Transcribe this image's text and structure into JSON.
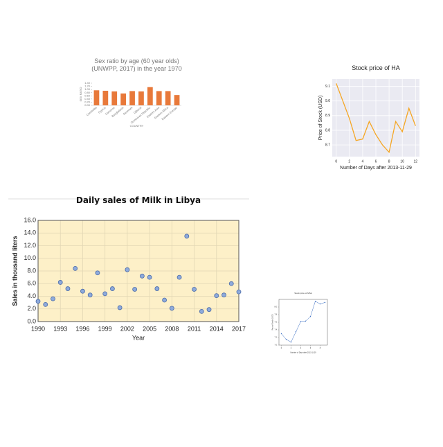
{
  "chart_data": [
    {
      "type": "bar",
      "title": "Sex ratio by age (60 year olds) (UNWPP, 2017) in the year 1970",
      "categories": [
        "Cambodia",
        "Cyprus",
        "Comoros",
        "Bangladesh",
        "Denmark",
        "Djibouti",
        "Dominican Republic",
        "Eastern Asia",
        "Eastern Africa",
        "Eastern Europe"
      ],
      "values": [
        0.95,
        0.92,
        0.88,
        0.75,
        0.9,
        0.88,
        1.15,
        0.9,
        0.9,
        0.65
      ],
      "color": "#e8793a",
      "xlabel": "COUNTRY",
      "ylabel": "SEX RATIO",
      "ylim": [
        0,
        1.4
      ],
      "yticks": [
        {
          "value": 0,
          "label": "0.00"
        },
        {
          "value": 0.2,
          "label": "0.20"
        },
        {
          "value": 0.4,
          "label": "0.40"
        },
        {
          "value": 0.6,
          "label": "0.60"
        },
        {
          "value": 0.8,
          "label": "0.80"
        },
        {
          "value": 1,
          "label": "1.00"
        },
        {
          "value": 1.2,
          "label": "1.20"
        },
        {
          "value": 1.4,
          "label": "1.40"
        }
      ],
      "grid": false
    },
    {
      "type": "line",
      "title": "Stock price of HA",
      "x": [
        0,
        1,
        2,
        3,
        4,
        5,
        6,
        7,
        8,
        9,
        10,
        11,
        12
      ],
      "values": [
        9.12,
        9.0,
        8.88,
        8.73,
        8.74,
        8.86,
        8.77,
        8.7,
        8.65,
        8.86,
        8.79,
        8.95,
        8.83
      ],
      "color": "#f5a623",
      "xlabel": "Number of Days after 2013-11-29",
      "ylabel": "Price of Stock (USD)",
      "xlim": [
        -0.6,
        12.6
      ],
      "xticks": [
        0,
        2,
        4,
        6,
        8,
        10,
        12
      ],
      "ylim": [
        8.62,
        9.15
      ],
      "yticks": [
        8.7,
        8.8,
        8.9,
        {
          "value": 9,
          "label": "9.0"
        },
        9.1
      ],
      "grid": true
    },
    {
      "type": "scatter",
      "title": "Daily sales of Milk in Libya",
      "x": [
        1990,
        1991,
        1992,
        1993,
        1994,
        1995,
        1996,
        1997,
        1998,
        1999,
        2000,
        2001,
        2002,
        2003,
        2004,
        2005,
        2006,
        2007,
        2008,
        2009,
        2010,
        2011,
        2012,
        2013,
        2014,
        2015,
        2016,
        2017
      ],
      "values": [
        3.2,
        2.7,
        3.6,
        6.2,
        5.2,
        8.4,
        4.8,
        4.2,
        7.7,
        4.4,
        5.2,
        2.2,
        8.2,
        5.1,
        7.2,
        7.0,
        5.2,
        3.4,
        2.1,
        7.0,
        13.5,
        5.1,
        1.6,
        1.9,
        4.1,
        4.2,
        6.0,
        4.7
      ],
      "color": "#8eaadb",
      "xlabel": "Year",
      "ylabel": "Sales in thousand liters",
      "xlim": [
        1990,
        2017
      ],
      "xticks": [
        1990,
        1993,
        1996,
        1999,
        2002,
        2005,
        2008,
        2011,
        2014,
        2017
      ],
      "ylim": [
        0,
        16
      ],
      "yticks": [
        {
          "value": 0,
          "label": "0.0"
        },
        {
          "value": 2,
          "label": "2.0"
        },
        {
          "value": 4,
          "label": "4.0"
        },
        {
          "value": 6,
          "label": "6.0"
        },
        {
          "value": 8,
          "label": "8.0"
        },
        {
          "value": 10,
          "label": "10.0"
        },
        {
          "value": 12,
          "label": "12.0"
        },
        {
          "value": 14,
          "label": "14.0"
        },
        {
          "value": 16,
          "label": "16.0"
        }
      ],
      "grid": true
    },
    {
      "type": "line",
      "title": "Stock price of MSA",
      "x": [
        0,
        1,
        2,
        3,
        4,
        5,
        6,
        7,
        8,
        9
      ],
      "values": [
        7.3,
        7.15,
        7.08,
        7.35,
        7.62,
        7.63,
        7.75,
        8.15,
        8.08,
        8.12
      ],
      "color": "#3b6fc4",
      "xlabel": "Number of Days after 2013-11-29",
      "ylabel": "Price of Stock (USD)",
      "xlim": [
        -0.5,
        9.5
      ],
      "xticks": [
        0,
        2,
        4,
        6,
        8
      ],
      "ylim": [
        7.0,
        8.2
      ],
      "yticks": [
        {
          "value": 7,
          "label": "7.0"
        },
        7.2,
        7.4,
        7.6,
        7.8,
        {
          "value": 8,
          "label": "8.0"
        }
      ],
      "grid": false
    }
  ]
}
